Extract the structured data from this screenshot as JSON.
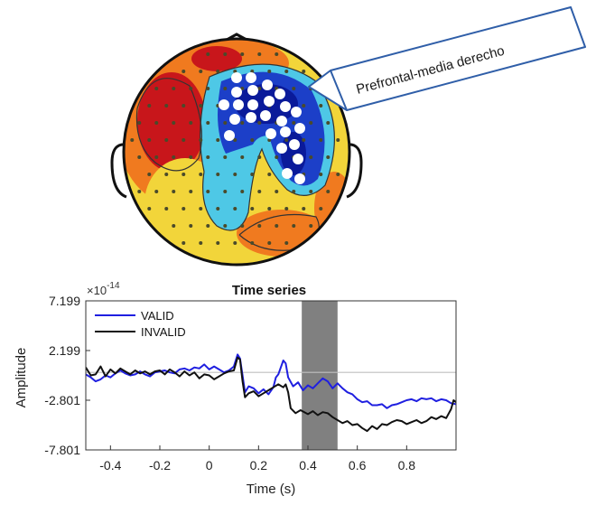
{
  "topomap": {
    "callout_label": "Prefrontal-media derecho",
    "colors": {
      "red": "#c8161b",
      "orange": "#f07a1f",
      "yellow": "#f2d53a",
      "cyan": "#4ec8e6",
      "blue": "#1c3fc8",
      "dark_blue": "#0a1a9a"
    }
  },
  "chart_data": {
    "type": "line",
    "title": "Time series",
    "xlabel": "Time (s)",
    "ylabel": "Amplitude",
    "exponent_label": "×10",
    "exponent_power": "-14",
    "xlim": [
      -0.5,
      1.0
    ],
    "ylim": [
      -7.801,
      7.199
    ],
    "xticks": [
      -0.4,
      -0.2,
      0,
      0.2,
      0.4,
      0.6,
      0.8
    ],
    "xtick_labels": [
      "-0.4",
      "-0.2",
      "0",
      "0.2",
      "0.4",
      "0.6",
      "0.8"
    ],
    "yticks": [
      7.199,
      2.199,
      -2.801,
      -7.801
    ],
    "ytick_labels": [
      "7.199",
      "2.199",
      "-2.801",
      "-7.801"
    ],
    "baseline_y": 0,
    "highlight_window": [
      0.375,
      0.52
    ],
    "highlight_color": "#808080",
    "legend_position": "top-left",
    "series": [
      {
        "name": "VALID",
        "color": "#1f1fe0",
        "points": [
          [
            -0.5,
            -0.2
          ],
          [
            -0.48,
            -0.5
          ],
          [
            -0.46,
            -0.9
          ],
          [
            -0.44,
            -0.7
          ],
          [
            -0.42,
            -0.3
          ],
          [
            -0.4,
            -0.5
          ],
          [
            -0.38,
            -0.1
          ],
          [
            -0.36,
            0.2
          ],
          [
            -0.34,
            -0.1
          ],
          [
            -0.32,
            -0.3
          ],
          [
            -0.3,
            -0.2
          ],
          [
            -0.28,
            0.1
          ],
          [
            -0.26,
            -0.2
          ],
          [
            -0.24,
            -0.4
          ],
          [
            -0.22,
            0.0
          ],
          [
            -0.2,
            0.1
          ],
          [
            -0.18,
            0.2
          ],
          [
            -0.16,
            0.0
          ],
          [
            -0.14,
            -0.1
          ],
          [
            -0.12,
            0.3
          ],
          [
            -0.1,
            0.4
          ],
          [
            -0.08,
            0.2
          ],
          [
            -0.06,
            0.5
          ],
          [
            -0.04,
            0.4
          ],
          [
            -0.02,
            0.8
          ],
          [
            0.0,
            0.3
          ],
          [
            0.02,
            0.6
          ],
          [
            0.04,
            0.3
          ],
          [
            0.06,
            0.0
          ],
          [
            0.08,
            0.2
          ],
          [
            0.1,
            0.6
          ],
          [
            0.115,
            1.8
          ],
          [
            0.125,
            1.4
          ],
          [
            0.135,
            -0.3
          ],
          [
            0.145,
            -2.0
          ],
          [
            0.16,
            -1.4
          ],
          [
            0.18,
            -1.6
          ],
          [
            0.2,
            -2.1
          ],
          [
            0.22,
            -1.7
          ],
          [
            0.24,
            -2.2
          ],
          [
            0.26,
            -1.5
          ],
          [
            0.27,
            -0.5
          ],
          [
            0.28,
            -0.2
          ],
          [
            0.3,
            1.2
          ],
          [
            0.31,
            0.9
          ],
          [
            0.32,
            -0.5
          ],
          [
            0.34,
            -1.4
          ],
          [
            0.36,
            -1.0
          ],
          [
            0.38,
            -1.8
          ],
          [
            0.4,
            -1.3
          ],
          [
            0.42,
            -1.6
          ],
          [
            0.44,
            -1.1
          ],
          [
            0.46,
            -0.6
          ],
          [
            0.48,
            -0.9
          ],
          [
            0.5,
            -1.6
          ],
          [
            0.52,
            -1.1
          ],
          [
            0.54,
            -1.6
          ],
          [
            0.56,
            -2.0
          ],
          [
            0.58,
            -2.2
          ],
          [
            0.6,
            -2.7
          ],
          [
            0.62,
            -3.0
          ],
          [
            0.64,
            -2.9
          ],
          [
            0.66,
            -3.3
          ],
          [
            0.68,
            -3.3
          ],
          [
            0.7,
            -3.2
          ],
          [
            0.72,
            -3.6
          ],
          [
            0.74,
            -3.3
          ],
          [
            0.76,
            -3.2
          ],
          [
            0.78,
            -3.0
          ],
          [
            0.8,
            -2.8
          ],
          [
            0.82,
            -2.7
          ],
          [
            0.84,
            -2.9
          ],
          [
            0.86,
            -2.6
          ],
          [
            0.88,
            -2.7
          ],
          [
            0.9,
            -2.6
          ],
          [
            0.92,
            -2.9
          ],
          [
            0.94,
            -2.7
          ],
          [
            0.96,
            -2.8
          ],
          [
            0.98,
            -3.1
          ],
          [
            1.0,
            -3.2
          ]
        ]
      },
      {
        "name": "INVALID",
        "color": "#111111",
        "points": [
          [
            -0.5,
            0.5
          ],
          [
            -0.48,
            -0.3
          ],
          [
            -0.46,
            -0.2
          ],
          [
            -0.44,
            0.6
          ],
          [
            -0.42,
            -0.4
          ],
          [
            -0.4,
            0.3
          ],
          [
            -0.38,
            -0.1
          ],
          [
            -0.36,
            0.4
          ],
          [
            -0.34,
            0.1
          ],
          [
            -0.32,
            -0.2
          ],
          [
            -0.3,
            0.2
          ],
          [
            -0.28,
            -0.1
          ],
          [
            -0.26,
            0.1
          ],
          [
            -0.24,
            -0.2
          ],
          [
            -0.22,
            0.1
          ],
          [
            -0.2,
            0.2
          ],
          [
            -0.18,
            -0.2
          ],
          [
            -0.16,
            0.3
          ],
          [
            -0.14,
            0.0
          ],
          [
            -0.12,
            -0.4
          ],
          [
            -0.1,
            0.1
          ],
          [
            -0.08,
            -0.3
          ],
          [
            -0.06,
            0.0
          ],
          [
            -0.04,
            -0.6
          ],
          [
            -0.02,
            -0.2
          ],
          [
            0.0,
            -0.3
          ],
          [
            0.02,
            -0.7
          ],
          [
            0.04,
            -0.4
          ],
          [
            0.06,
            -0.1
          ],
          [
            0.08,
            0.1
          ],
          [
            0.1,
            0.2
          ],
          [
            0.115,
            1.5
          ],
          [
            0.125,
            1.3
          ],
          [
            0.135,
            -0.9
          ],
          [
            0.145,
            -2.5
          ],
          [
            0.16,
            -2.1
          ],
          [
            0.18,
            -1.9
          ],
          [
            0.2,
            -2.4
          ],
          [
            0.22,
            -2.1
          ],
          [
            0.24,
            -1.8
          ],
          [
            0.26,
            -1.5
          ],
          [
            0.28,
            -1.2
          ],
          [
            0.3,
            -1.5
          ],
          [
            0.31,
            -1.2
          ],
          [
            0.32,
            -2.0
          ],
          [
            0.33,
            -3.6
          ],
          [
            0.35,
            -4.1
          ],
          [
            0.37,
            -3.8
          ],
          [
            0.4,
            -4.2
          ],
          [
            0.42,
            -3.9
          ],
          [
            0.44,
            -4.3
          ],
          [
            0.46,
            -4.0
          ],
          [
            0.48,
            -4.1
          ],
          [
            0.5,
            -4.5
          ],
          [
            0.52,
            -4.8
          ],
          [
            0.54,
            -5.1
          ],
          [
            0.56,
            -4.9
          ],
          [
            0.58,
            -5.3
          ],
          [
            0.6,
            -5.2
          ],
          [
            0.62,
            -5.6
          ],
          [
            0.64,
            -5.9
          ],
          [
            0.66,
            -5.4
          ],
          [
            0.68,
            -5.7
          ],
          [
            0.7,
            -5.2
          ],
          [
            0.72,
            -5.3
          ],
          [
            0.74,
            -5.0
          ],
          [
            0.76,
            -4.8
          ],
          [
            0.78,
            -4.9
          ],
          [
            0.8,
            -5.2
          ],
          [
            0.82,
            -5.0
          ],
          [
            0.84,
            -4.8
          ],
          [
            0.86,
            -5.1
          ],
          [
            0.88,
            -4.9
          ],
          [
            0.9,
            -4.5
          ],
          [
            0.92,
            -4.7
          ],
          [
            0.94,
            -4.4
          ],
          [
            0.96,
            -4.6
          ],
          [
            0.98,
            -3.7
          ],
          [
            0.99,
            -2.8
          ],
          [
            1.0,
            -3.0
          ]
        ]
      }
    ]
  }
}
